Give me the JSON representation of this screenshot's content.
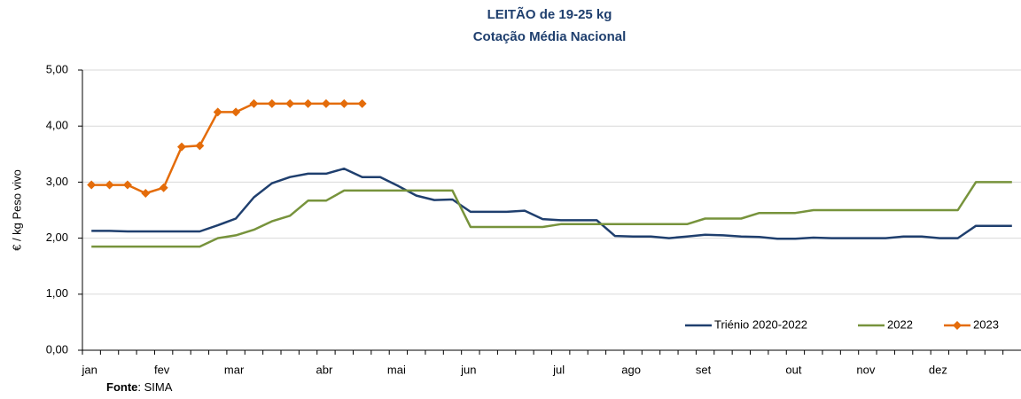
{
  "chart_data": {
    "type": "line",
    "title": "LEITÃO de 19-25 kg",
    "subtitle": "Cotação Média Nacional",
    "y_label": "€ / kg Peso vivo",
    "source_label": "Fonte",
    "source": ": SIMA",
    "categories": [
      "jan",
      null,
      null,
      null,
      "fev",
      null,
      null,
      null,
      "mar",
      null,
      null,
      null,
      null,
      "abr",
      null,
      null,
      null,
      "mai",
      null,
      null,
      null,
      "jun",
      null,
      null,
      null,
      null,
      "jul",
      null,
      null,
      null,
      "ago",
      null,
      null,
      null,
      "set",
      null,
      null,
      null,
      null,
      "out",
      null,
      null,
      null,
      "nov",
      null,
      null,
      null,
      "dez",
      null,
      null,
      null,
      null
    ],
    "series": [
      {
        "name": "Triénio 2020-2022",
        "color": "#1f3f6e",
        "marker": false,
        "values": [
          2.13,
          2.13,
          2.12,
          2.12,
          2.12,
          2.12,
          2.12,
          2.23,
          2.35,
          2.73,
          2.98,
          3.09,
          3.15,
          3.15,
          3.24,
          3.09,
          3.09,
          2.93,
          2.76,
          2.68,
          2.69,
          2.47,
          2.47,
          2.47,
          2.49,
          2.34,
          2.32,
          2.32,
          2.32,
          2.04,
          2.03,
          2.03,
          2.0,
          2.03,
          2.06,
          2.05,
          2.03,
          2.02,
          1.99,
          1.99,
          2.01,
          2.0,
          2.0,
          2.0,
          2.0,
          2.03,
          2.03,
          2.0,
          2.0,
          2.22,
          2.22,
          2.22
        ]
      },
      {
        "name": "2022",
        "color": "#77933c",
        "marker": false,
        "values": [
          1.85,
          1.85,
          1.85,
          1.85,
          1.85,
          1.85,
          1.85,
          2.0,
          2.05,
          2.15,
          2.3,
          2.4,
          2.67,
          2.67,
          2.85,
          2.85,
          2.85,
          2.85,
          2.85,
          2.85,
          2.85,
          2.2,
          2.2,
          2.2,
          2.2,
          2.2,
          2.25,
          2.25,
          2.25,
          2.25,
          2.25,
          2.25,
          2.25,
          2.25,
          2.35,
          2.35,
          2.35,
          2.45,
          2.45,
          2.45,
          2.5,
          2.5,
          2.5,
          2.5,
          2.5,
          2.5,
          2.5,
          2.5,
          2.5,
          3.0,
          3.0,
          3.0
        ]
      },
      {
        "name": "2023",
        "color": "#e46c0a",
        "marker": true,
        "values": [
          2.95,
          2.95,
          2.95,
          2.8,
          2.9,
          3.63,
          3.65,
          4.25,
          4.25,
          4.4,
          4.4,
          4.4,
          4.4,
          4.4,
          4.4,
          4.4,
          null,
          null,
          null,
          null,
          null,
          null,
          null,
          null,
          null,
          null,
          null,
          null,
          null,
          null,
          null,
          null,
          null,
          null,
          null,
          null,
          null,
          null,
          null,
          null,
          null,
          null,
          null,
          null,
          null,
          null,
          null,
          null,
          null,
          null,
          null,
          null
        ]
      }
    ],
    "ylim": [
      0,
      5
    ],
    "yticks": [
      {
        "value": 0,
        "label": "0,00"
      },
      {
        "value": 1,
        "label": "1,00"
      },
      {
        "value": 2,
        "label": "2,00"
      },
      {
        "value": 3,
        "label": "3,00"
      },
      {
        "value": 4,
        "label": "4,00"
      },
      {
        "value": 5,
        "label": "5,00"
      }
    ],
    "grid": true,
    "legend": "bottom-right"
  }
}
